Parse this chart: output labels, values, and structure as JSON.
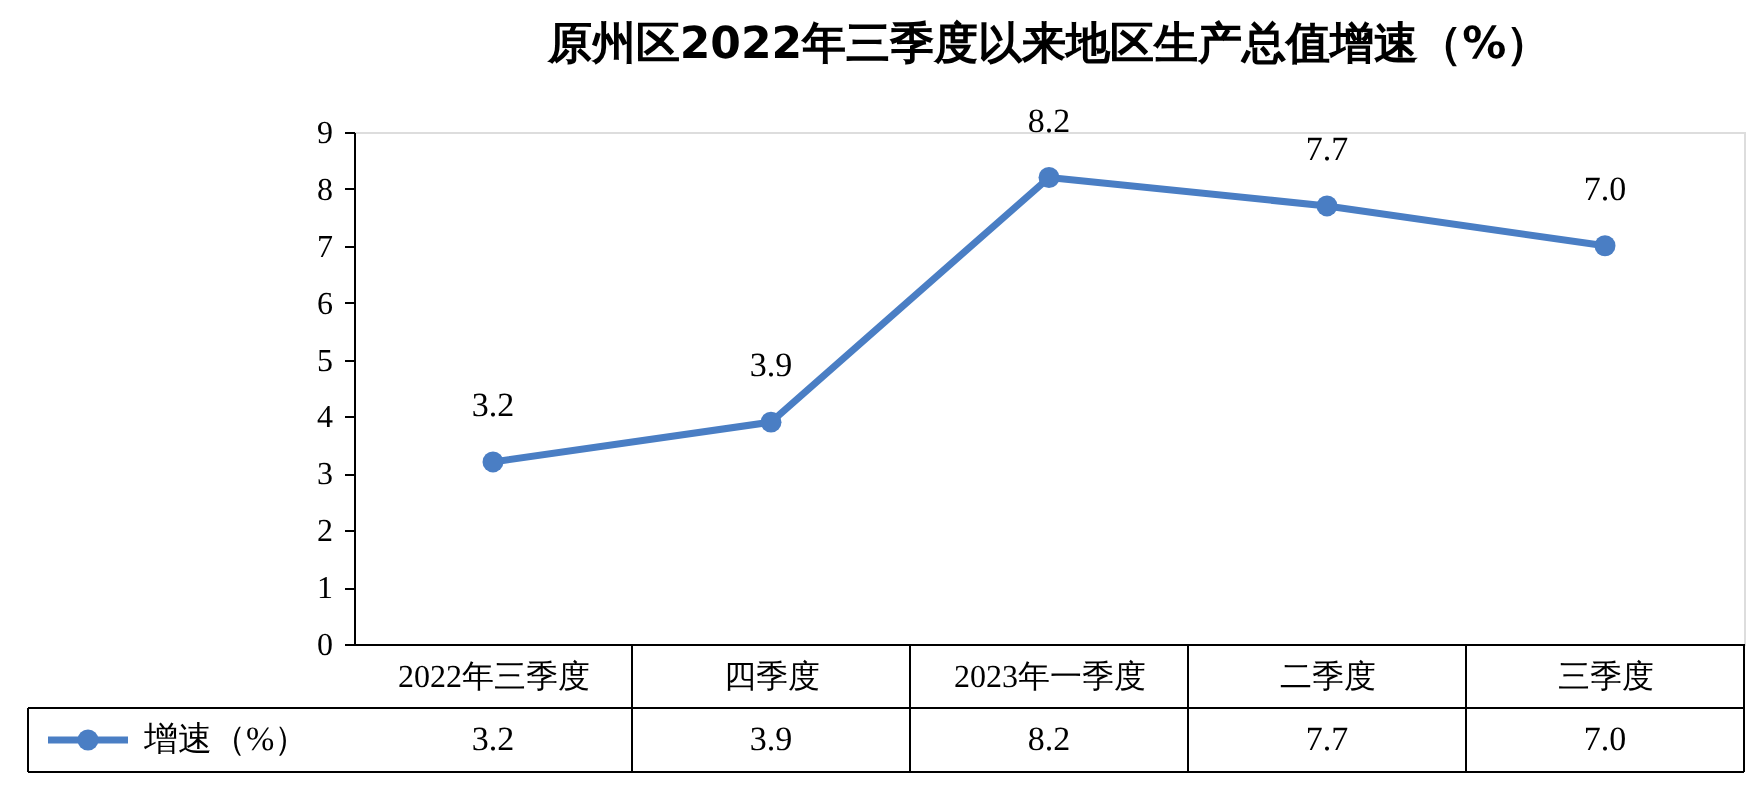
{
  "chart_data": {
    "type": "line",
    "title": "原州区2022年三季度以来地区生产总值增速（%）",
    "categories": [
      "2022年三季度",
      "四季度",
      "2023年一季度",
      "二季度",
      "三季度"
    ],
    "series": [
      {
        "name": "增速（%）",
        "color": "#4a7ec4",
        "values": [
          3.2,
          3.9,
          8.2,
          7.7,
          7.0
        ],
        "value_labels": [
          "3.2",
          "3.9",
          "8.2",
          "7.7",
          "7.0"
        ]
      }
    ],
    "ylim": [
      0,
      9
    ],
    "yticks": [
      0,
      1,
      2,
      3,
      4,
      5,
      6,
      7,
      8,
      9
    ],
    "data_labels": true,
    "legend": "bottom",
    "marker": "circle",
    "line_style": "solid"
  }
}
